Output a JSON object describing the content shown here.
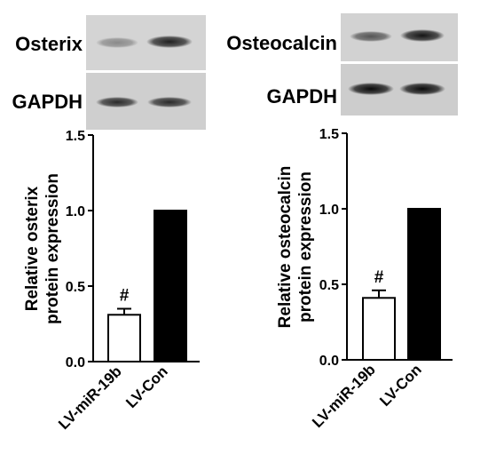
{
  "blots": [
    {
      "rows": [
        {
          "label": "Osterix",
          "band_intensity": [
            0.35,
            0.85
          ]
        },
        {
          "label": "GAPDH",
          "band_intensity": [
            0.8,
            0.8
          ]
        }
      ]
    },
    {
      "rows": [
        {
          "label": "Osteocalcin",
          "band_intensity": [
            0.6,
            0.9
          ]
        },
        {
          "label": "GAPDH",
          "band_intensity": [
            0.95,
            0.95
          ]
        }
      ]
    }
  ],
  "chart_data": [
    {
      "type": "bar",
      "categories": [
        "LV-miR-19b",
        "LV-Con"
      ],
      "values": [
        0.31,
        1.0
      ],
      "errors": [
        0.04,
        0.0
      ],
      "bar_fill": [
        "#ffffff",
        "#000000"
      ],
      "annotations": [
        "#",
        ""
      ],
      "ylabel": [
        "Relative osterix",
        "protein expression"
      ],
      "xlabel": "",
      "ylim": [
        0,
        1.5
      ],
      "yticks": [
        "0.0",
        "0.5",
        "1.0",
        "1.5"
      ]
    },
    {
      "type": "bar",
      "categories": [
        "LV-miR-19b",
        "LV-Con"
      ],
      "values": [
        0.41,
        1.0
      ],
      "errors": [
        0.05,
        0.0
      ],
      "bar_fill": [
        "#ffffff",
        "#000000"
      ],
      "annotations": [
        "#",
        ""
      ],
      "ylabel": [
        "Relative osteocalcin",
        "protein expression"
      ],
      "xlabel": "",
      "ylim": [
        0,
        1.5
      ],
      "yticks": [
        "0.0",
        "0.5",
        "1.0",
        "1.5"
      ]
    }
  ]
}
